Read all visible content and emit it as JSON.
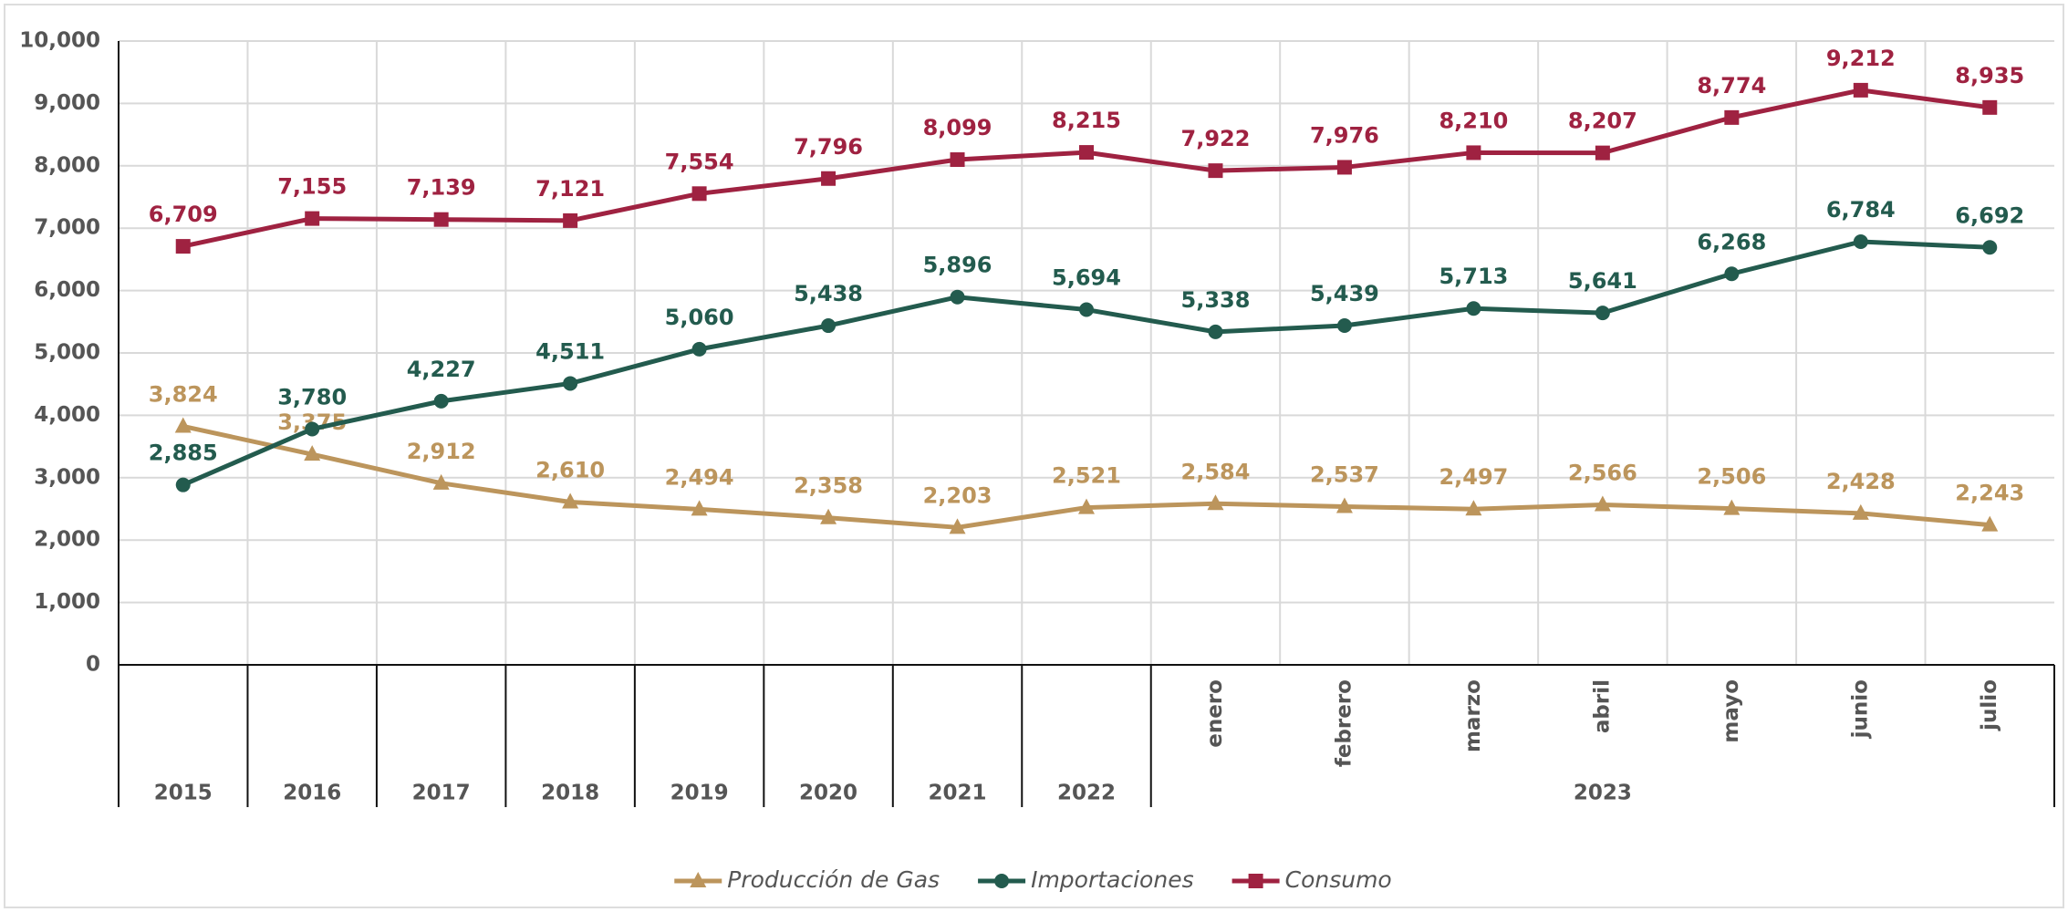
{
  "chart_data": {
    "type": "line",
    "categories": [
      "2015",
      "2016",
      "2017",
      "2018",
      "2019",
      "2020",
      "2021",
      "2022",
      "enero",
      "febrero",
      "marzo",
      "abril",
      "mayo",
      "junio",
      "julio"
    ],
    "category_groups": [
      {
        "label": "2023",
        "first": 8,
        "last": 14
      }
    ],
    "ylim": [
      0,
      10000
    ],
    "yticks": [
      0,
      {
        "value": 1000,
        "label": "1,000"
      },
      {
        "value": 2000,
        "label": "2,000"
      },
      {
        "value": 3000,
        "label": "3,000"
      },
      {
        "value": 4000,
        "label": "4,000"
      },
      {
        "value": 5000,
        "label": "5,000"
      },
      {
        "value": 6000,
        "label": "6,000"
      },
      {
        "value": 7000,
        "label": "7,000"
      },
      {
        "value": 8000,
        "label": "8,000"
      },
      {
        "value": 9000,
        "label": "9,000"
      },
      {
        "value": 10000,
        "label": "10,000"
      }
    ],
    "grid": true,
    "legend": "bottom",
    "series": [
      {
        "name": "Producción de Gas",
        "color": "#bc955c",
        "marker": "triangle",
        "values": [
          3824,
          3375,
          2912,
          2610,
          2494,
          2358,
          2203,
          2521,
          2584,
          2537,
          2497,
          2566,
          2506,
          2428,
          2243
        ],
        "value_labels": [
          "3,824",
          "3,375",
          "2,912",
          "2,610",
          "2,494",
          "2,358",
          "2,203",
          "2,521",
          "2,584",
          "2,537",
          "2,497",
          "2,566",
          "2,506",
          "2,428",
          "2,243"
        ]
      },
      {
        "name": "Importaciones",
        "color": "#235b4e",
        "marker": "circle",
        "values": [
          2885,
          3780,
          4227,
          4511,
          5060,
          5438,
          5896,
          5694,
          5338,
          5439,
          5713,
          5641,
          6268,
          6784,
          6692
        ],
        "value_labels": [
          "2,885",
          "3,780",
          "4,227",
          "4,511",
          "5,060",
          "5,438",
          "5,896",
          "5,694",
          "5,338",
          "5,439",
          "5,713",
          "5,641",
          "6,268",
          "6,784",
          "6,692"
        ]
      },
      {
        "name": "Consumo",
        "color": "#9f2241",
        "marker": "square",
        "values": [
          6709,
          7155,
          7139,
          7121,
          7554,
          7796,
          8099,
          8215,
          7922,
          7976,
          8210,
          8207,
          8774,
          9212,
          8935
        ],
        "value_labels": [
          "6,709",
          "7,155",
          "7,139",
          "7,121",
          "7,554",
          "7,796",
          "8,099",
          "8,215",
          "7,922",
          "7,976",
          "8,210",
          "8,207",
          "8,774",
          "9,212",
          "8,935"
        ]
      }
    ]
  }
}
